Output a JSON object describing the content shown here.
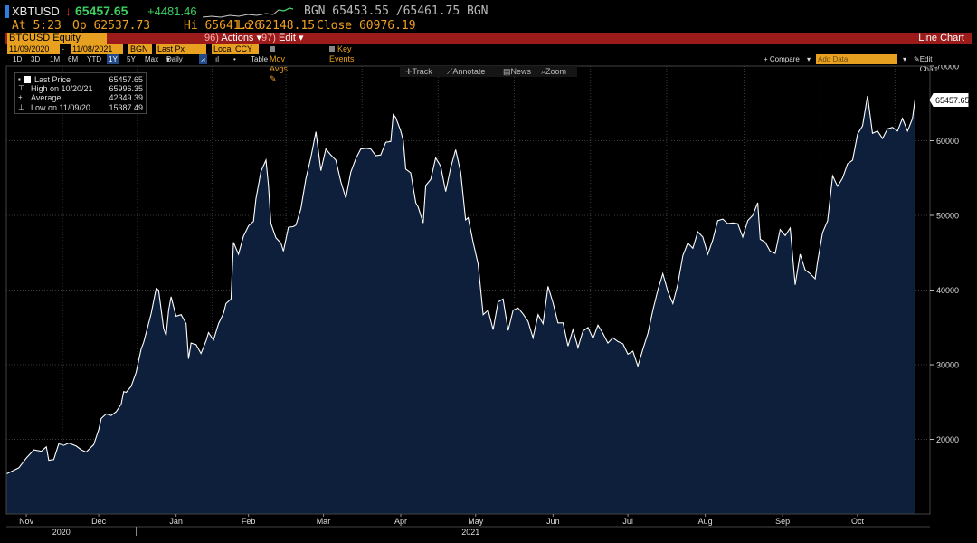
{
  "header": {
    "ticker": "XBTUSD",
    "last": "65457.65",
    "change": "+4481.46",
    "bid_ask": "BGN  65453.55 /65461.75  BGN",
    "time": "At 5:23",
    "open": "Op 62537.73",
    "high": "Hi 65641.26",
    "low": "Lo 62148.15",
    "close": "Close 60976.19",
    "colors": {
      "up": "#3cd060",
      "down": "#e0303a",
      "amber": "#f0a020"
    }
  },
  "toolbar": {
    "security": "BTCUSD Equity",
    "actions_num": "96)",
    "actions": "Actions",
    "edit_num": "97)",
    "edit": "Edit",
    "chart_type": "Line Chart",
    "start_date": "11/09/2020",
    "end_date": "11/08/2021",
    "source": "BGN",
    "field": "Last Px",
    "currency": "Local CCY",
    "mov_avgs": "Mov Avgs",
    "key_events": "Key Events"
  },
  "periods": {
    "items": [
      "1D",
      "3D",
      "1M",
      "6M",
      "YTD",
      "1Y",
      "5Y",
      "Max",
      "Daily"
    ],
    "selected": "1Y",
    "table": "Table",
    "compare": "+ Compare",
    "add_data": "Add Data",
    "edit_chart": "Edit Chart"
  },
  "chart_tools": {
    "track": "Track",
    "annotate": "Annotate",
    "news": "News",
    "zoom": "Zoom"
  },
  "legend": {
    "last_label": "Last Price",
    "last_value": "65457.65",
    "high_label": "High on 10/20/21",
    "high_value": "65996.35",
    "avg_label": "Average",
    "avg_value": "42349.39",
    "low_label": "Low on 11/09/20",
    "low_value": "15387.49"
  },
  "chart_data": {
    "type": "area",
    "series": [
      {
        "name": "Last Price",
        "color": "#ffffff",
        "fill": "#0d1f3a",
        "points": [
          [
            "2020-11-09",
            15387
          ],
          [
            "2020-11-11",
            15700
          ],
          [
            "2020-11-14",
            16200
          ],
          [
            "2020-11-17",
            17500
          ],
          [
            "2020-11-20",
            18600
          ],
          [
            "2020-11-23",
            18400
          ],
          [
            "2020-11-25",
            19000
          ],
          [
            "2020-11-26",
            17200
          ],
          [
            "2020-11-28",
            17300
          ],
          [
            "2020-11-30",
            19400
          ],
          [
            "2020-12-02",
            19200
          ],
          [
            "2020-12-04",
            19500
          ],
          [
            "2020-12-07",
            19100
          ],
          [
            "2020-12-09",
            18600
          ],
          [
            "2020-12-11",
            18300
          ],
          [
            "2020-12-14",
            19300
          ],
          [
            "2020-12-16",
            21300
          ],
          [
            "2020-12-17",
            22800
          ],
          [
            "2020-12-19",
            23400
          ],
          [
            "2020-12-21",
            23200
          ],
          [
            "2020-12-23",
            23700
          ],
          [
            "2020-12-25",
            24700
          ],
          [
            "2020-12-26",
            26400
          ],
          [
            "2020-12-27",
            26300
          ],
          [
            "2020-12-29",
            27100
          ],
          [
            "2020-12-31",
            29000
          ],
          [
            "2021-01-02",
            32100
          ],
          [
            "2021-01-03",
            33000
          ],
          [
            "2021-01-06",
            36800
          ],
          [
            "2021-01-08",
            40200
          ],
          [
            "2021-01-09",
            40000
          ],
          [
            "2021-01-11",
            34900
          ],
          [
            "2021-01-12",
            33900
          ],
          [
            "2021-01-13",
            37300
          ],
          [
            "2021-01-14",
            39100
          ],
          [
            "2021-01-16",
            36500
          ],
          [
            "2021-01-18",
            36700
          ],
          [
            "2021-01-20",
            35500
          ],
          [
            "2021-01-21",
            30800
          ],
          [
            "2021-01-22",
            32900
          ],
          [
            "2021-01-24",
            32700
          ],
          [
            "2021-01-26",
            31500
          ],
          [
            "2021-01-28",
            33200
          ],
          [
            "2021-01-29",
            34300
          ],
          [
            "2021-01-31",
            33300
          ],
          [
            "2021-02-02",
            35500
          ],
          [
            "2021-02-04",
            36900
          ],
          [
            "2021-02-05",
            38200
          ],
          [
            "2021-02-07",
            38800
          ],
          [
            "2021-02-08",
            46400
          ],
          [
            "2021-02-10",
            44800
          ],
          [
            "2021-02-12",
            47200
          ],
          [
            "2021-02-14",
            48600
          ],
          [
            "2021-02-16",
            49200
          ],
          [
            "2021-02-17",
            52200
          ],
          [
            "2021-02-19",
            55900
          ],
          [
            "2021-02-21",
            57400
          ],
          [
            "2021-02-22",
            54100
          ],
          [
            "2021-02-23",
            48900
          ],
          [
            "2021-02-25",
            47000
          ],
          [
            "2021-02-27",
            46300
          ],
          [
            "2021-02-28",
            45200
          ],
          [
            "2021-03-02",
            48400
          ],
          [
            "2021-03-04",
            48500
          ],
          [
            "2021-03-05",
            48700
          ],
          [
            "2021-03-07",
            50900
          ],
          [
            "2021-03-09",
            54900
          ],
          [
            "2021-03-11",
            57800
          ],
          [
            "2021-03-13",
            61200
          ],
          [
            "2021-03-15",
            56000
          ],
          [
            "2021-03-17",
            58900
          ],
          [
            "2021-03-19",
            58100
          ],
          [
            "2021-03-21",
            57400
          ],
          [
            "2021-03-23",
            54500
          ],
          [
            "2021-03-25",
            52300
          ],
          [
            "2021-03-27",
            55800
          ],
          [
            "2021-03-29",
            57600
          ],
          [
            "2021-03-31",
            58900
          ],
          [
            "2021-04-02",
            59000
          ],
          [
            "2021-04-04",
            58900
          ],
          [
            "2021-04-06",
            58000
          ],
          [
            "2021-04-08",
            58100
          ],
          [
            "2021-04-10",
            59800
          ],
          [
            "2021-04-12",
            59900
          ],
          [
            "2021-04-13",
            63500
          ],
          [
            "2021-04-14",
            63100
          ],
          [
            "2021-04-16",
            61300
          ],
          [
            "2021-04-17",
            60000
          ],
          [
            "2021-04-18",
            56200
          ],
          [
            "2021-04-20",
            55700
          ],
          [
            "2021-04-22",
            51700
          ],
          [
            "2021-04-23",
            51100
          ],
          [
            "2021-04-25",
            49000
          ],
          [
            "2021-04-26",
            54000
          ],
          [
            "2021-04-28",
            54800
          ],
          [
            "2021-04-30",
            57700
          ],
          [
            "2021-05-02",
            56600
          ],
          [
            "2021-05-04",
            53200
          ],
          [
            "2021-05-06",
            56400
          ],
          [
            "2021-05-08",
            58800
          ],
          [
            "2021-05-10",
            55800
          ],
          [
            "2021-05-12",
            49400
          ],
          [
            "2021-05-13",
            49700
          ],
          [
            "2021-05-15",
            46400
          ],
          [
            "2021-05-17",
            43500
          ],
          [
            "2021-05-19",
            36700
          ],
          [
            "2021-05-21",
            37300
          ],
          [
            "2021-05-23",
            34700
          ],
          [
            "2021-05-25",
            38400
          ],
          [
            "2021-05-27",
            38800
          ],
          [
            "2021-05-29",
            34600
          ],
          [
            "2021-05-31",
            37300
          ],
          [
            "2021-06-02",
            37600
          ],
          [
            "2021-06-04",
            36800
          ],
          [
            "2021-06-06",
            35800
          ],
          [
            "2021-06-08",
            33600
          ],
          [
            "2021-06-10",
            36700
          ],
          [
            "2021-06-12",
            35500
          ],
          [
            "2021-06-14",
            40500
          ],
          [
            "2021-06-16",
            38300
          ],
          [
            "2021-06-18",
            35600
          ],
          [
            "2021-06-20",
            35600
          ],
          [
            "2021-06-22",
            32500
          ],
          [
            "2021-06-24",
            34700
          ],
          [
            "2021-06-26",
            32300
          ],
          [
            "2021-06-28",
            34500
          ],
          [
            "2021-06-30",
            35000
          ],
          [
            "2021-07-02",
            33500
          ],
          [
            "2021-07-04",
            35300
          ],
          [
            "2021-07-06",
            34200
          ],
          [
            "2021-07-08",
            32900
          ],
          [
            "2021-07-10",
            33600
          ],
          [
            "2021-07-12",
            33100
          ],
          [
            "2021-07-14",
            32800
          ],
          [
            "2021-07-16",
            31400
          ],
          [
            "2021-07-18",
            31800
          ],
          [
            "2021-07-20",
            29800
          ],
          [
            "2021-07-22",
            32100
          ],
          [
            "2021-07-24",
            34200
          ],
          [
            "2021-07-26",
            37300
          ],
          [
            "2021-07-28",
            40000
          ],
          [
            "2021-07-30",
            42200
          ],
          [
            "2021-08-01",
            39800
          ],
          [
            "2021-08-03",
            38200
          ],
          [
            "2021-08-05",
            40800
          ],
          [
            "2021-08-07",
            44600
          ],
          [
            "2021-08-09",
            46300
          ],
          [
            "2021-08-11",
            45600
          ],
          [
            "2021-08-13",
            47800
          ],
          [
            "2021-08-15",
            47100
          ],
          [
            "2021-08-17",
            44800
          ],
          [
            "2021-08-19",
            46700
          ],
          [
            "2021-08-21",
            49300
          ],
          [
            "2021-08-23",
            49500
          ],
          [
            "2021-08-25",
            48900
          ],
          [
            "2021-08-27",
            49000
          ],
          [
            "2021-08-29",
            48900
          ],
          [
            "2021-08-31",
            47100
          ],
          [
            "2021-09-02",
            49300
          ],
          [
            "2021-09-04",
            50000
          ],
          [
            "2021-09-06",
            51700
          ],
          [
            "2021-09-07",
            46800
          ],
          [
            "2021-09-09",
            46400
          ],
          [
            "2021-09-11",
            45200
          ],
          [
            "2021-09-13",
            44900
          ],
          [
            "2021-09-15",
            48100
          ],
          [
            "2021-09-17",
            47300
          ],
          [
            "2021-09-19",
            48300
          ],
          [
            "2021-09-21",
            40700
          ],
          [
            "2021-09-23",
            44800
          ],
          [
            "2021-09-25",
            42700
          ],
          [
            "2021-09-27",
            42200
          ],
          [
            "2021-09-29",
            41500
          ],
          [
            "2021-09-30",
            43800
          ],
          [
            "2021-10-02",
            47700
          ],
          [
            "2021-10-04",
            49300
          ],
          [
            "2021-10-06",
            55300
          ],
          [
            "2021-10-08",
            53900
          ],
          [
            "2021-10-10",
            55000
          ],
          [
            "2021-10-12",
            56900
          ],
          [
            "2021-10-14",
            57400
          ],
          [
            "2021-10-16",
            60900
          ],
          [
            "2021-10-18",
            62000
          ],
          [
            "2021-10-20",
            65996
          ],
          [
            "2021-10-22",
            61000
          ],
          [
            "2021-10-24",
            61300
          ],
          [
            "2021-10-26",
            60300
          ],
          [
            "2021-10-28",
            61600
          ],
          [
            "2021-10-30",
            61800
          ],
          [
            "2021-11-01",
            61300
          ],
          [
            "2021-11-03",
            63000
          ],
          [
            "2021-11-05",
            61300
          ],
          [
            "2021-11-07",
            63000
          ],
          [
            "2021-11-08",
            65457
          ]
        ]
      }
    ],
    "ylim": [
      10000,
      70000
    ],
    "y_ticks": [
      20000,
      30000,
      40000,
      50000,
      60000,
      70000
    ],
    "x_months": [
      {
        "label": "Nov",
        "date": "2020-11-17"
      },
      {
        "label": "Dec",
        "date": "2020-12-16"
      },
      {
        "label": "Jan",
        "date": "2021-01-16"
      },
      {
        "label": "Feb",
        "date": "2021-02-14"
      },
      {
        "label": "Mar",
        "date": "2021-03-16"
      },
      {
        "label": "Apr",
        "date": "2021-04-16"
      },
      {
        "label": "May",
        "date": "2021-05-16"
      },
      {
        "label": "Jun",
        "date": "2021-06-16"
      },
      {
        "label": "Jul",
        "date": "2021-07-16"
      },
      {
        "label": "Aug",
        "date": "2021-08-16"
      },
      {
        "label": "Sep",
        "date": "2021-09-16"
      },
      {
        "label": "Oct",
        "date": "2021-10-16"
      }
    ],
    "x_years": [
      {
        "label": "2020",
        "date": "2020-12-01"
      },
      {
        "label": "2021",
        "date": "2021-05-14"
      }
    ],
    "x_range": [
      "2020-11-09",
      "2021-11-14"
    ],
    "last_value_label": "65457.65",
    "grid": true
  }
}
